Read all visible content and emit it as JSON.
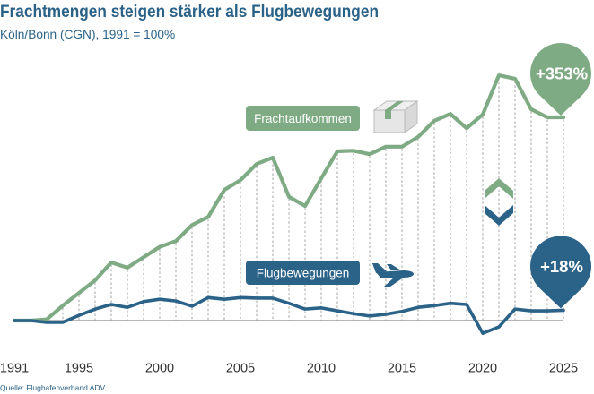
{
  "chart_data": {
    "type": "line",
    "title": "Frachtmengen steigen stärker als Flugbewegungen",
    "subtitle": "Köln/Bonn (CGN), 1991 = 100%",
    "source": "Quelle: Flughafenverband ADV",
    "x": [
      1991,
      1992,
      1993,
      1994,
      1995,
      1996,
      1997,
      1998,
      1999,
      2000,
      2001,
      2002,
      2003,
      2004,
      2005,
      2006,
      2007,
      2008,
      2009,
      2010,
      2011,
      2012,
      2013,
      2014,
      2015,
      2016,
      2017,
      2018,
      2019,
      2020,
      2021,
      2022,
      2023,
      2024,
      2025
    ],
    "xticks": [
      1991,
      1995,
      2000,
      2005,
      2010,
      2015,
      2020,
      2025
    ],
    "xlim": [
      1991,
      2025
    ],
    "ylim": [
      50,
      550
    ],
    "reference_value": 100,
    "grid": {
      "vertical": true,
      "horizontal": false
    },
    "series": [
      {
        "name": "Frachtaufkommen",
        "color": "#7fab84",
        "icon": "package-icon",
        "trend_icon": "chevron-up-icon",
        "annotation": "+353%",
        "values": [
          100,
          100,
          102,
          126,
          148,
          170,
          201,
          192,
          210,
          228,
          238,
          266,
          280,
          327,
          344,
          372,
          383,
          315,
          299,
          347,
          394,
          395,
          389,
          402,
          402,
          419,
          447,
          459,
          434,
          458,
          526,
          520,
          467,
          453,
          453
        ]
      },
      {
        "name": "Flugbewegungen",
        "color": "#2b6288",
        "icon": "airplane-icon",
        "trend_icon": "chevron-down-icon",
        "annotation": "+18%",
        "values": [
          100,
          100,
          97,
          97,
          109,
          120,
          128,
          123,
          133,
          137,
          134,
          125,
          140,
          137,
          140,
          139,
          139,
          130,
          120,
          122,
          117,
          112,
          108,
          111,
          116,
          123,
          126,
          130,
          128,
          78,
          89,
          120,
          117,
          117,
          118
        ]
      }
    ]
  },
  "colors": {
    "title": "#2b6288",
    "grid": "#a3a3a3",
    "baseline": "#9e9e9e",
    "tick_text": "#333333"
  }
}
